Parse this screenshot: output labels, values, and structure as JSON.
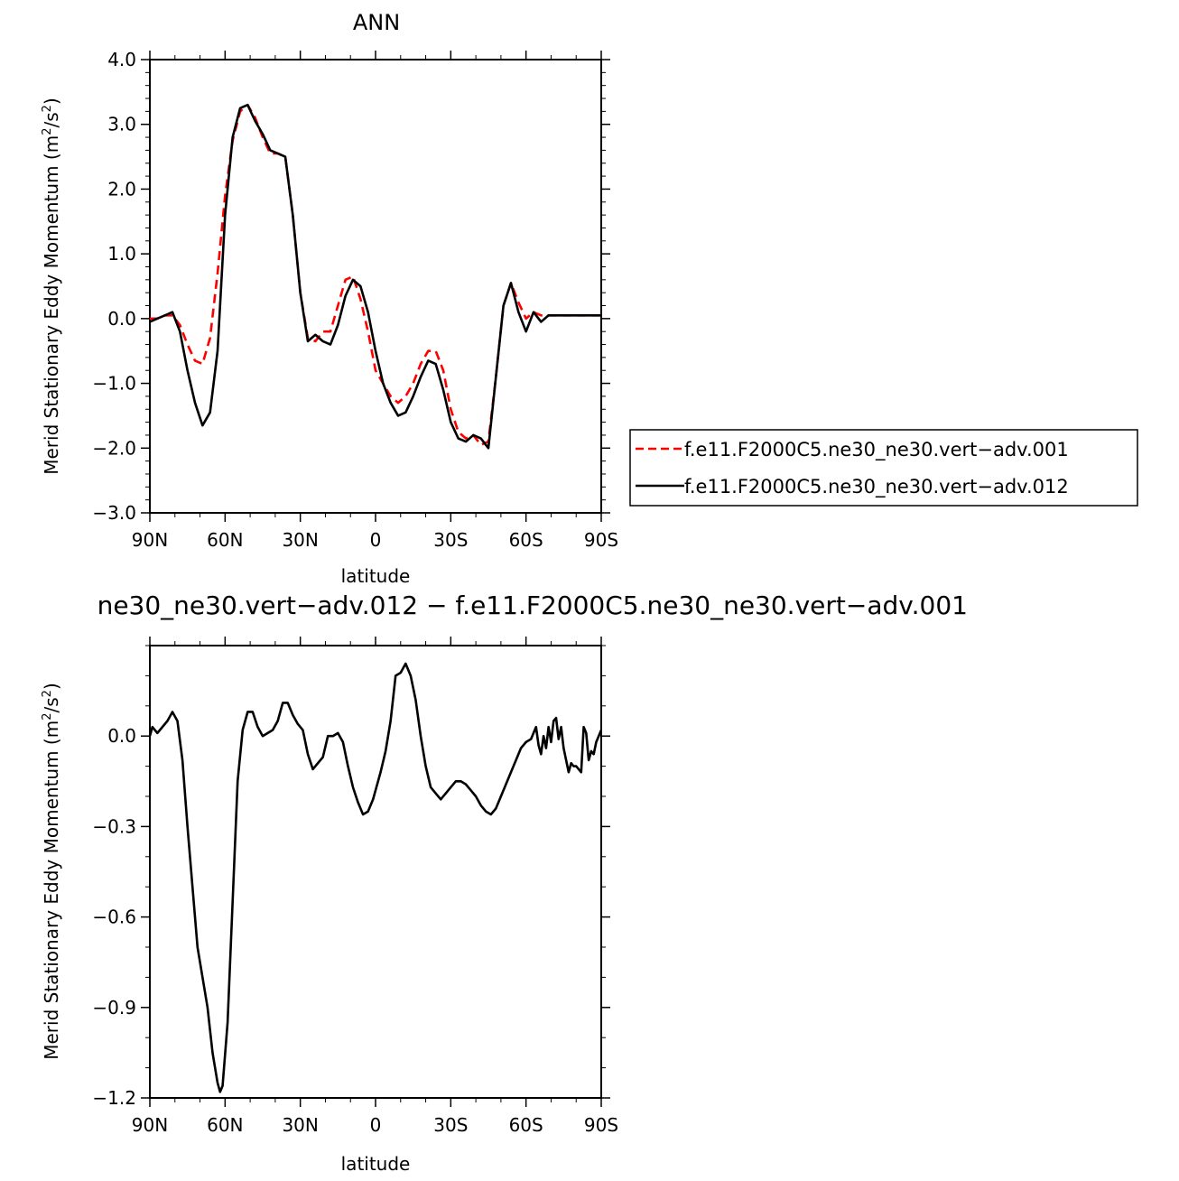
{
  "chart_data": [
    {
      "type": "line",
      "title": "ANN",
      "xlabel": "latitude",
      "ylabel": "Merid Stationary Eddy Momentum (m²/s²)",
      "ylabel_main": "Merid Stationary Eddy Momentum  (m",
      "ylabel_sup": "2",
      "ylabel_mid": "/s",
      "ylabel_sup2": "2",
      "ylabel_end": ")",
      "xlim": [
        90,
        -90
      ],
      "ylim": [
        -3.0,
        4.0
      ],
      "xticks": [
        90,
        60,
        30,
        0,
        -30,
        -60,
        -90
      ],
      "xtick_labels": [
        "90N",
        "60N",
        "30N",
        "0",
        "30S",
        "60S",
        "90S"
      ],
      "yticks": [
        -3.0,
        -2.0,
        -1.0,
        0.0,
        1.0,
        2.0,
        3.0,
        4.0
      ],
      "ytick_labels": [
        "−3.0",
        "−2.0",
        "−1.0",
        "0.0",
        "1.0",
        "2.0",
        "3.0",
        "4.0"
      ],
      "grid": false,
      "legend_placement": "right-outside",
      "series": [
        {
          "name": "f.e11.F2000C5.ne30_ne30.vert−adv.001",
          "color": "#ff0000",
          "dash": "dashed",
          "x": [
            90,
            87,
            84,
            81,
            78,
            75,
            72,
            69,
            66,
            63,
            60,
            57,
            54,
            51,
            48,
            45,
            42,
            39,
            36,
            33,
            30,
            27,
            24,
            21,
            18,
            15,
            12,
            9,
            6,
            3,
            0,
            -3,
            -6,
            -9,
            -12,
            -15,
            -18,
            -21,
            -24,
            -27,
            -30,
            -33,
            -36,
            -39,
            -42,
            -45,
            -48,
            -51,
            -54,
            -57,
            -60,
            -63,
            -66,
            -69,
            -72,
            -75,
            -78,
            -81,
            -84,
            -87,
            -90
          ],
          "y": [
            0.0,
            0.0,
            0.05,
            0.05,
            -0.1,
            -0.4,
            -0.65,
            -0.7,
            -0.3,
            0.7,
            1.9,
            2.75,
            3.2,
            3.3,
            3.1,
            2.8,
            2.55,
            2.55,
            2.5,
            1.6,
            0.4,
            -0.3,
            -0.35,
            -0.2,
            -0.2,
            0.2,
            0.6,
            0.65,
            0.3,
            -0.2,
            -0.8,
            -1.0,
            -1.2,
            -1.3,
            -1.2,
            -1.0,
            -0.7,
            -0.5,
            -0.5,
            -0.8,
            -1.4,
            -1.75,
            -1.85,
            -1.8,
            -1.95,
            -1.9,
            -0.9,
            0.2,
            0.55,
            0.25,
            0.0,
            0.1,
            0.05,
            0.05,
            0.05,
            0.05,
            0.05,
            0.05,
            0.05,
            0.05,
            0.05
          ]
        },
        {
          "name": "f.e11.F2000C5.ne30_ne30.vert−adv.012",
          "color": "#000000",
          "dash": "solid",
          "x": [
            90,
            87,
            84,
            81,
            78,
            75,
            72,
            69,
            66,
            63,
            60,
            57,
            54,
            51,
            48,
            45,
            42,
            39,
            36,
            33,
            30,
            27,
            24,
            21,
            18,
            15,
            12,
            9,
            6,
            3,
            0,
            -3,
            -6,
            -9,
            -12,
            -15,
            -18,
            -21,
            -24,
            -27,
            -30,
            -33,
            -36,
            -39,
            -42,
            -45,
            -48,
            -51,
            -54,
            -57,
            -60,
            -63,
            -66,
            -69,
            -72,
            -75,
            -78,
            -81,
            -84,
            -87,
            -90
          ],
          "y": [
            -0.05,
            0.0,
            0.05,
            0.1,
            -0.2,
            -0.8,
            -1.3,
            -1.65,
            -1.45,
            -0.5,
            1.6,
            2.8,
            3.25,
            3.3,
            3.05,
            2.85,
            2.6,
            2.55,
            2.5,
            1.6,
            0.4,
            -0.35,
            -0.25,
            -0.35,
            -0.4,
            -0.1,
            0.35,
            0.6,
            0.5,
            0.1,
            -0.5,
            -1.0,
            -1.3,
            -1.5,
            -1.45,
            -1.2,
            -0.9,
            -0.65,
            -0.7,
            -1.1,
            -1.6,
            -1.85,
            -1.9,
            -1.8,
            -1.85,
            -2.0,
            -0.9,
            0.2,
            0.55,
            0.1,
            -0.2,
            0.1,
            -0.05,
            0.05,
            0.05,
            0.05,
            0.05,
            0.05,
            0.05,
            0.05,
            0.05
          ]
        }
      ]
    },
    {
      "type": "line",
      "title": "ne30_ne30.vert−adv.012 − f.e11.F2000C5.ne30_ne30.vert−adv.001",
      "xlabel": "latitude",
      "ylabel_main": "Merid Stationary Eddy Momentum  (m",
      "ylabel_sup": "2",
      "ylabel_mid": "/s",
      "ylabel_sup2": "2",
      "ylabel_end": ")",
      "xlim": [
        90,
        -90
      ],
      "ylim": [
        -1.2,
        0.3
      ],
      "xticks": [
        90,
        60,
        30,
        0,
        -30,
        -60,
        -90
      ],
      "xtick_labels": [
        "90N",
        "60N",
        "30N",
        "0",
        "30S",
        "60S",
        "90S"
      ],
      "yticks": [
        -1.2,
        -0.9,
        -0.6,
        -0.3,
        0.0
      ],
      "ytick_labels": [
        "−1.2",
        "−0.9",
        "−0.6",
        "−0.3",
        "0.0"
      ],
      "grid": false,
      "series": [
        {
          "color": "#000000",
          "dash": "solid",
          "x": [
            90,
            89,
            87,
            85,
            83,
            81,
            79,
            77,
            75,
            73,
            71,
            69,
            67,
            65,
            63,
            62,
            61,
            59,
            57,
            55,
            53,
            51,
            49,
            47,
            45,
            43,
            41,
            39,
            37,
            35,
            33,
            31,
            29,
            27,
            25,
            23,
            21,
            19,
            17,
            15,
            13,
            11,
            9,
            7,
            5,
            3,
            1,
            0,
            -2,
            -4,
            -6,
            -8,
            -10,
            -12,
            -14,
            -16,
            -18,
            -20,
            -22,
            -24,
            -26,
            -28,
            -30,
            -32,
            -34,
            -36,
            -38,
            -40,
            -42,
            -44,
            -46,
            -48,
            -50,
            -52,
            -54,
            -56,
            -58,
            -60,
            -62,
            -64,
            -65,
            -66,
            -67,
            -68,
            -69,
            -70,
            -71,
            -72,
            -73,
            -74,
            -75,
            -76,
            -77,
            -78,
            -79,
            -80,
            -81,
            -82,
            -83,
            -84,
            -85,
            -86,
            -87,
            -88,
            -89,
            -90
          ],
          "y": [
            0.0,
            0.03,
            0.01,
            0.03,
            0.05,
            0.08,
            0.05,
            -0.08,
            -0.3,
            -0.5,
            -0.7,
            -0.8,
            -0.9,
            -1.05,
            -1.15,
            -1.18,
            -1.16,
            -0.95,
            -0.55,
            -0.15,
            0.02,
            0.08,
            0.08,
            0.03,
            0.0,
            0.01,
            0.02,
            0.05,
            0.11,
            0.11,
            0.07,
            0.04,
            0.02,
            -0.06,
            -0.11,
            -0.09,
            -0.07,
            0.0,
            0.0,
            0.01,
            -0.02,
            -0.1,
            -0.17,
            -0.22,
            -0.26,
            -0.25,
            -0.21,
            -0.18,
            -0.12,
            -0.05,
            0.05,
            0.2,
            0.21,
            0.24,
            0.2,
            0.12,
            0.0,
            -0.1,
            -0.17,
            -0.19,
            -0.21,
            -0.19,
            -0.17,
            -0.15,
            -0.15,
            -0.16,
            -0.18,
            -0.2,
            -0.23,
            -0.25,
            -0.26,
            -0.24,
            -0.2,
            -0.16,
            -0.12,
            -0.08,
            -0.04,
            -0.02,
            -0.01,
            0.03,
            -0.03,
            -0.06,
            0.0,
            -0.04,
            0.03,
            -0.02,
            0.05,
            0.06,
            -0.01,
            0.03,
            -0.04,
            -0.08,
            -0.12,
            -0.09,
            -0.1,
            -0.1,
            -0.11,
            -0.12,
            0.03,
            0.01,
            -0.08,
            -0.05,
            -0.06,
            -0.02,
            0.0,
            0.02
          ]
        }
      ]
    }
  ],
  "legend": {
    "items": [
      {
        "label": "f.e11.F2000C5.ne30_ne30.vert−adv.001",
        "color": "#ff0000",
        "dash": "dashed"
      },
      {
        "label": "f.e11.F2000C5.ne30_ne30.vert−adv.012",
        "color": "#000000",
        "dash": "solid"
      }
    ]
  }
}
